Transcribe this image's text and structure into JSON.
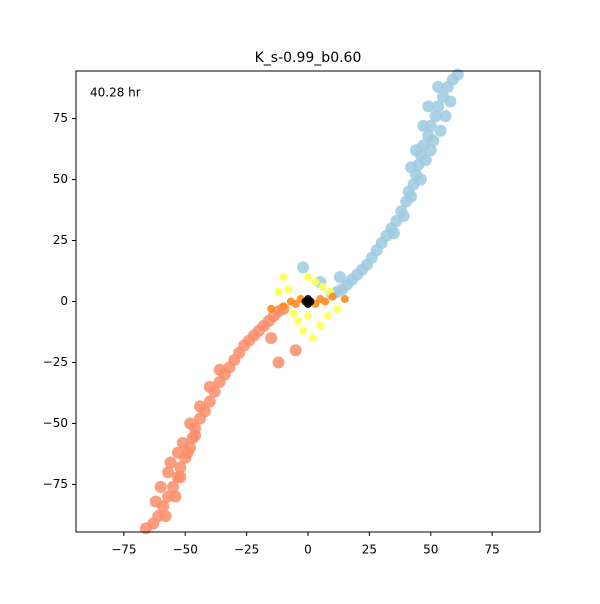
{
  "chart_data": {
    "type": "scatter",
    "title": "K_s-0.99_b0.60",
    "annotation": "40.28 hr",
    "xlim": [
      -94.5,
      94.5
    ],
    "ylim": [
      -94.5,
      94.5
    ],
    "xticks": [
      -75,
      -50,
      -25,
      0,
      25,
      50,
      75
    ],
    "yticks": [
      -75,
      -50,
      -25,
      0,
      25,
      50,
      75
    ],
    "series": [
      {
        "color": "#9ecae1",
        "x": [
          10,
          12,
          14,
          16,
          18,
          20,
          22,
          24,
          26,
          28,
          30,
          32,
          34,
          36,
          38,
          40,
          41,
          43,
          44,
          45,
          46,
          47,
          49,
          50,
          52,
          53,
          55,
          57,
          59,
          61,
          42,
          46,
          48,
          50,
          54,
          56,
          58,
          44,
          49,
          53,
          51,
          39,
          35,
          42,
          47,
          5,
          13,
          -2
        ],
        "values": [
          3,
          4,
          5,
          7,
          9,
          11,
          13,
          15,
          18,
          21,
          24,
          27,
          30,
          33,
          37,
          41,
          45,
          48,
          52,
          56,
          60,
          64,
          68,
          72,
          76,
          80,
          84,
          88,
          91,
          93,
          43,
          50,
          58,
          62,
          70,
          76,
          82,
          62,
          80,
          88,
          66,
          35,
          28,
          55,
          72,
          8,
          10,
          14
        ]
      },
      {
        "color": "#fc8d6a",
        "x": [
          -10,
          -12,
          -14,
          -16,
          -18,
          -20,
          -22,
          -24,
          -26,
          -28,
          -30,
          -32,
          -34,
          -36,
          -38,
          -40,
          -42,
          -44,
          -46,
          -47,
          -48,
          -50,
          -52,
          -53,
          -55,
          -57,
          -59,
          -61,
          -63,
          -66,
          -44,
          -48,
          -51,
          -53,
          -57,
          -60,
          -62,
          -49,
          -54,
          -58,
          -56,
          -40,
          -36,
          -46,
          -52,
          -15,
          -5,
          -12
        ],
        "values": [
          -3,
          -4,
          -6,
          -8,
          -10,
          -12,
          -14,
          -16,
          -18,
          -21,
          -24,
          -27,
          -30,
          -33,
          -37,
          -41,
          -45,
          -48,
          -52,
          -56,
          -60,
          -64,
          -68,
          -72,
          -76,
          -80,
          -84,
          -88,
          -91,
          -93,
          -43,
          -50,
          -58,
          -62,
          -70,
          -76,
          -82,
          -62,
          -80,
          -88,
          -66,
          -35,
          -28,
          -55,
          -72,
          -15,
          -20,
          -25
        ]
      },
      {
        "color": "#ffff55",
        "x": [
          -8,
          6,
          -4,
          8,
          0,
          -2,
          12,
          -12,
          3,
          -6,
          9,
          2,
          -10,
          5,
          0
        ],
        "values": [
          5,
          6,
          -8,
          -6,
          10,
          -12,
          -3,
          4,
          8,
          -5,
          4,
          -15,
          10,
          -10,
          -6
        ]
      },
      {
        "color": "#ff8c1a",
        "x": [
          0,
          -5,
          5,
          -10,
          10,
          -3,
          3,
          -15,
          15,
          -7,
          7
        ],
        "values": [
          0,
          -1,
          1,
          -2,
          2,
          1,
          -1,
          -3,
          1,
          0,
          0
        ]
      },
      {
        "color": "#000000",
        "x": [
          0,
          1,
          -1,
          0,
          0
        ],
        "values": [
          0,
          0,
          0,
          1,
          -1
        ]
      }
    ]
  }
}
